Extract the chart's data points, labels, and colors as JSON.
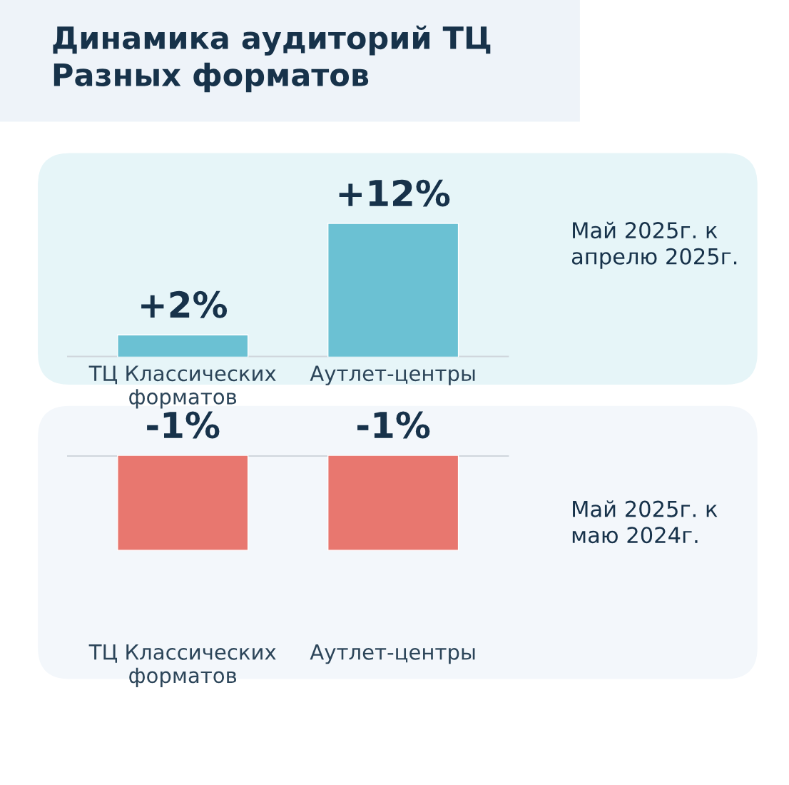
{
  "chart_data": [
    {
      "type": "bar",
      "title": "Динамика аудиторий ТЦ\nРазных форматов",
      "categories": [
        "ТЦ Классических\nформатов",
        "Аутлет-центры"
      ],
      "values": [
        2,
        12
      ],
      "color": "#6bc1d3",
      "value_labels": [
        "+2%",
        "+12%"
      ],
      "tick_labels": "x",
      "annotations": [
        "Май 2025г. к\nапрелю 2025г."
      ]
    },
    {
      "type": "bar",
      "categories": [
        "ТЦ Классических\nформатов",
        "Аутлет-центры"
      ],
      "values": [
        -1,
        -1
      ],
      "color": "#e8776f",
      "value_labels": [
        "-1%",
        "-1%"
      ],
      "tick_labels": "x",
      "annotations": [
        "Май 2025г. к\nмаю 2024г."
      ]
    }
  ]
}
